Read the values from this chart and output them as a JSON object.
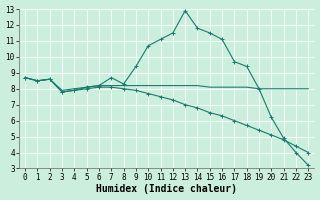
{
  "xlabel": "Humidex (Indice chaleur)",
  "background_color": "#cceedd",
  "grid_color": "#ffffff",
  "line_color": "#1a7a6e",
  "xlim": [
    -0.5,
    23.5
  ],
  "ylim": [
    3,
    13
  ],
  "xticks": [
    0,
    1,
    2,
    3,
    4,
    5,
    6,
    7,
    8,
    9,
    10,
    11,
    12,
    13,
    14,
    15,
    16,
    17,
    18,
    19,
    20,
    21,
    22,
    23
  ],
  "yticks": [
    3,
    4,
    5,
    6,
    7,
    8,
    9,
    10,
    11,
    12,
    13
  ],
  "line1_x": [
    0,
    1,
    2,
    3,
    4,
    5,
    6,
    7,
    8,
    9,
    10,
    11,
    12,
    13,
    14,
    15,
    16,
    17,
    18,
    19,
    20,
    21,
    22,
    23
  ],
  "line1_y": [
    8.7,
    8.5,
    8.6,
    7.8,
    7.9,
    8.1,
    8.2,
    8.7,
    8.3,
    9.4,
    10.7,
    11.1,
    11.5,
    12.9,
    11.8,
    11.5,
    11.1,
    9.7,
    9.4,
    8.0,
    6.2,
    4.9,
    4.0,
    3.2
  ],
  "line2_x": [
    0,
    1,
    2,
    3,
    4,
    5,
    6,
    7,
    8,
    9,
    10,
    11,
    12,
    13,
    14,
    15,
    16,
    17,
    18,
    19,
    20,
    21,
    22,
    23
  ],
  "line2_y": [
    8.7,
    8.5,
    8.6,
    7.9,
    8.0,
    8.1,
    8.2,
    8.2,
    8.2,
    8.2,
    8.2,
    8.2,
    8.2,
    8.2,
    8.2,
    8.1,
    8.1,
    8.1,
    8.1,
    8.0,
    8.0,
    8.0,
    8.0,
    8.0
  ],
  "line3_x": [
    0,
    1,
    2,
    3,
    4,
    5,
    6,
    7,
    8,
    9,
    10,
    11,
    12,
    13,
    14,
    15,
    16,
    17,
    18,
    19,
    20,
    21,
    22,
    23
  ],
  "line3_y": [
    8.7,
    8.5,
    8.6,
    7.8,
    7.9,
    8.0,
    8.1,
    8.1,
    8.0,
    7.9,
    7.7,
    7.5,
    7.3,
    7.0,
    6.8,
    6.5,
    6.3,
    6.0,
    5.7,
    5.4,
    5.1,
    4.8,
    4.4,
    4.0
  ],
  "tick_fontsize": 5.5,
  "xlabel_fontsize": 7.0,
  "lw": 0.8,
  "ms": 2.5
}
